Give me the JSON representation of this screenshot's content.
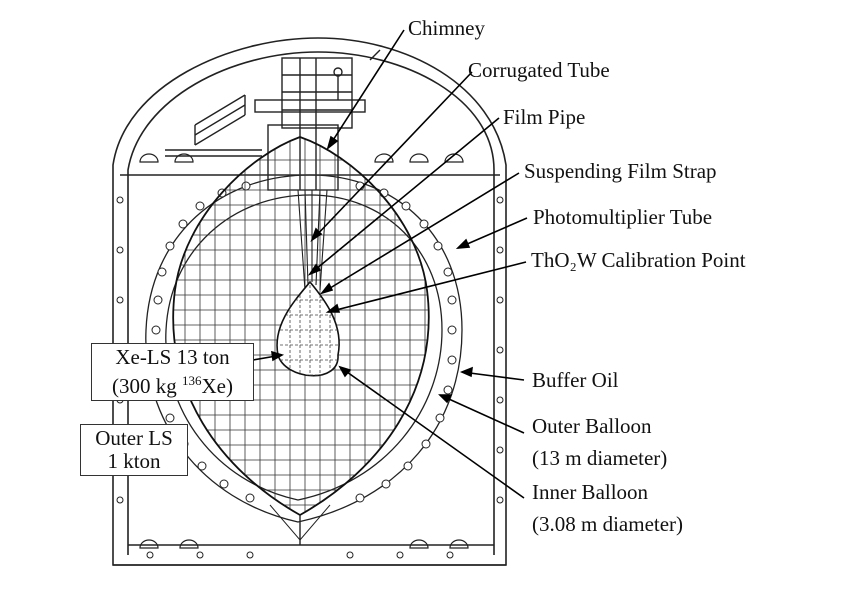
{
  "labels": {
    "chimney": "Chimney",
    "corrugated_tube": "Corrugated Tube",
    "film_pipe": "Film Pipe",
    "suspending_film_strap": "Suspending Film Strap",
    "photomultiplier_tube": "Photomultiplier Tube",
    "calibration_point": "ThO₂W Calibration Point",
    "buffer_oil": "Buffer Oil",
    "outer_balloon_line1": "Outer Balloon",
    "outer_balloon_line2": "(13 m diameter)",
    "inner_balloon_line1": "Inner Balloon",
    "inner_balloon_line2": "(3.08 m diameter)"
  },
  "boxes": {
    "xe_ls_line1": "Xe-LS 13 ton",
    "xe_ls_line2_prefix": "(300 kg ",
    "xe_ls_isotope": "136",
    "xe_ls_line2_suffix": "Xe)",
    "outer_ls_line1": "Outer LS",
    "outer_ls_line2": "1 kton"
  }
}
